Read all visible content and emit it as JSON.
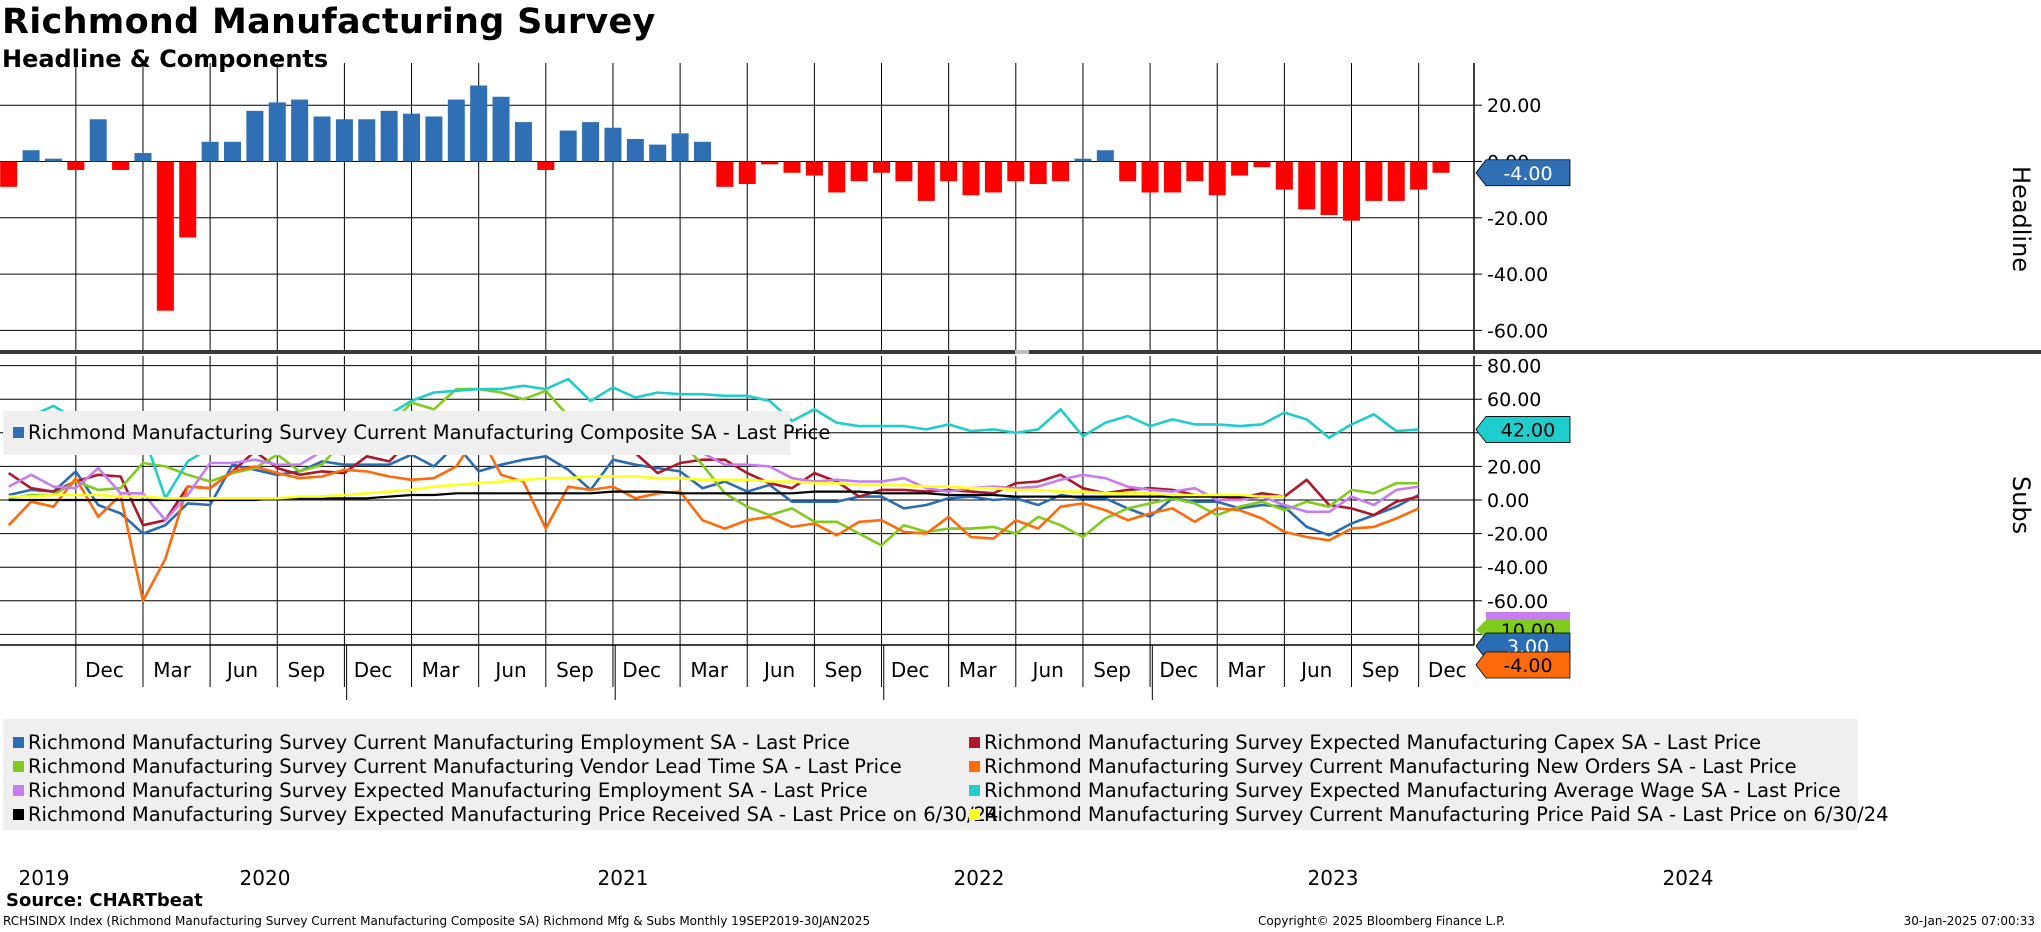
{
  "title": "Richmond Manufacturing Survey",
  "subtitle": "Headline & Components",
  "source": "Source: CHARTbeat",
  "footer": {
    "left": "RCHSINDX Index (Richmond Manufacturing Survey Current Manufacturing Composite SA) Richmond Mfg & Subs  Monthly 19SEP2019-30JAN2025",
    "center": "Copyright© 2025 Bloomberg Finance L.P.",
    "right": "30-Jan-2025 07:00:33"
  },
  "colors": {
    "positive_bar": "#2f6fb3",
    "negative_bar": "#ff0000",
    "employment": "#2a6db5",
    "capex": "#b0182a",
    "vendor": "#7fcc1c",
    "new_orders": "#ff6a0a",
    "exp_employment": "#c77cf0",
    "avg_wage": "#1fcdcd",
    "price_received": "#000000",
    "price_paid": "#ffff1a"
  },
  "x_axis": {
    "month_ticks": [
      "Dec",
      "Mar",
      "Jun",
      "Sep",
      "Dec",
      "Mar",
      "Jun",
      "Sep",
      "Dec",
      "Mar",
      "Jun",
      "Sep",
      "Dec",
      "Mar",
      "Jun",
      "Sep",
      "Dec",
      "Mar",
      "Jun",
      "Sep",
      "Dec"
    ],
    "year_ticks": [
      "2019",
      "2020",
      "2021",
      "2022",
      "2023",
      "2024"
    ]
  },
  "chart_data": [
    {
      "type": "bar",
      "panel": "Headline",
      "ylabel": "Headline",
      "ylim": [
        -64,
        34
      ],
      "yticks": [
        "20.00",
        "0.00",
        "-20.00",
        "-40.00",
        "-60.00"
      ],
      "last_value_tag": "-4.00",
      "legend": [
        "Richmond Manufacturing Survey Current Manufacturing Composite SA - Last Price"
      ],
      "x": [
        "Sep 2019",
        "Oct 2019",
        "Nov 2019",
        "Dec 2019",
        "Jan 2020",
        "Feb 2020",
        "Mar 2020",
        "Apr 2020",
        "May 2020",
        "Jun 2020",
        "Jul 2020",
        "Aug 2020",
        "Sep 2020",
        "Oct 2020",
        "Nov 2020",
        "Dec 2020",
        "Jan 2021",
        "Feb 2021",
        "Mar 2021",
        "Apr 2021",
        "May 2021",
        "Jun 2021",
        "Jul 2021",
        "Aug 2021",
        "Sep 2021",
        "Oct 2021",
        "Nov 2021",
        "Dec 2021",
        "Jan 2022",
        "Feb 2022",
        "Mar 2022",
        "Apr 2022",
        "May 2022",
        "Jun 2022",
        "Jul 2022",
        "Aug 2022",
        "Sep 2022",
        "Oct 2022",
        "Nov 2022",
        "Dec 2022",
        "Jan 2023",
        "Feb 2023",
        "Mar 2023",
        "Apr 2023",
        "May 2023",
        "Jun 2023",
        "Jul 2023",
        "Aug 2023",
        "Sep 2023",
        "Oct 2023",
        "Nov 2023",
        "Dec 2023",
        "Jan 2024",
        "Feb 2024",
        "Mar 2024",
        "Apr 2024",
        "May 2024",
        "Jun 2024",
        "Jul 2024",
        "Aug 2024",
        "Sep 2024",
        "Oct 2024",
        "Nov 2024",
        "Dec 2024",
        "Jan 2025"
      ],
      "values": [
        -9,
        4,
        1,
        -3,
        15,
        -3,
        3,
        -53,
        -27,
        7,
        7,
        18,
        21,
        22,
        16,
        15,
        15,
        18,
        17,
        16,
        22,
        27,
        23,
        14,
        -3,
        11,
        14,
        12,
        8,
        6,
        10,
        7,
        -9,
        -8,
        -1,
        -4,
        -5,
        -11,
        -7,
        -4,
        -7,
        -14,
        -7,
        -12,
        -11,
        -7,
        -8,
        -7,
        1,
        4,
        -7,
        -11,
        -11,
        -7,
        -12,
        -5,
        -2,
        -10,
        -17,
        -19,
        -21,
        -14,
        -14,
        -10,
        -4
      ]
    },
    {
      "type": "line",
      "panel": "Subs",
      "ylabel": "Subs",
      "ylim": [
        -84,
        84
      ],
      "yticks": [
        "80.00",
        "60.00",
        "40.00",
        "20.00",
        "0.00",
        "-20.00",
        "-40.00",
        "-60.00",
        "-80.00"
      ],
      "last_value_tags": [
        "42.00",
        "10.00",
        "3.00",
        "-4.00"
      ],
      "series": [
        {
          "name": "Richmond Manufacturing Survey Current Manufacturing Employment SA - Last Price",
          "key": "employment",
          "values": [
            3,
            6,
            5,
            17,
            -3,
            -8,
            -20,
            -15,
            -2,
            -3,
            21,
            18,
            15,
            17,
            23,
            21,
            21,
            21,
            27,
            20,
            33,
            17,
            21,
            24,
            26,
            18,
            6,
            24,
            21,
            19,
            17,
            7,
            11,
            5,
            9,
            -1,
            -1,
            -1,
            2,
            2,
            -5,
            -3,
            1,
            2,
            0,
            1,
            -3,
            3,
            1,
            1,
            -5,
            -10,
            1,
            -1,
            -1,
            -5,
            -3,
            -4,
            -16,
            -21,
            -14,
            -9,
            -4,
            3
          ]
        },
        {
          "name": "Richmond Manufacturing Survey Expected Manufacturing Capex SA - Last Price",
          "key": "capex",
          "values": [
            16,
            7,
            5,
            11,
            15,
            14,
            -15,
            -12,
            8,
            7,
            17,
            29,
            19,
            15,
            17,
            16,
            26,
            23,
            36,
            42,
            35,
            40,
            33,
            40,
            34,
            30,
            41,
            39,
            28,
            16,
            22,
            24,
            24,
            16,
            10,
            7,
            16,
            11,
            2,
            6,
            6,
            5,
            6,
            5,
            4,
            10,
            11,
            15,
            7,
            4,
            6,
            7,
            6,
            3,
            2,
            1,
            4,
            2,
            12,
            -3,
            -5,
            -9,
            -1,
            2
          ]
        },
        {
          "name": "Richmond Manufacturing Survey Current Manufacturing Vendor Lead Time SA - Last Price",
          "key": "vendor",
          "values": [
            1,
            3,
            3,
            11,
            6,
            7,
            22,
            20,
            15,
            11,
            16,
            19,
            27,
            17,
            21,
            36,
            37,
            44,
            58,
            54,
            66,
            66,
            64,
            60,
            65,
            50,
            35,
            46,
            44,
            44,
            35,
            21,
            4,
            -4,
            -9,
            -5,
            -13,
            -13,
            -20,
            -27,
            -15,
            -19,
            -17,
            -17,
            -16,
            -20,
            -10,
            -15,
            -22,
            -11,
            -5,
            -2,
            1,
            -2,
            -9,
            -4,
            -1,
            -6,
            -1,
            -4,
            6,
            4,
            10,
            10
          ]
        },
        {
          "name": "Richmond Manufacturing Survey Current Manufacturing New Orders SA - Last Price",
          "key": "new_orders",
          "values": [
            -15,
            -1,
            -4,
            13,
            -10,
            3,
            -60,
            -35,
            8,
            7,
            17,
            20,
            16,
            13,
            14,
            18,
            17,
            14,
            12,
            13,
            20,
            40,
            15,
            11,
            -17,
            8,
            6,
            8,
            1,
            4,
            5,
            -12,
            -17,
            -12,
            -10,
            -16,
            -14,
            -21,
            -13,
            -12,
            -19,
            -20,
            -10,
            -22,
            -23,
            -12,
            -17,
            -4,
            -2,
            -6,
            -12,
            -8,
            -5,
            -13,
            -5,
            -6,
            -11,
            -19,
            -22,
            -24,
            -17,
            -16,
            -11,
            -5
          ]
        },
        {
          "name": "Richmond Manufacturing Survey Expected Manufacturing Employment SA - Last Price",
          "key": "exp_employment",
          "values": [
            8,
            15,
            8,
            7,
            19,
            4,
            4,
            -12,
            3,
            22,
            22,
            24,
            21,
            21,
            29,
            27,
            34,
            35,
            35,
            38,
            46,
            48,
            50,
            41,
            49,
            46,
            43,
            46,
            44,
            36,
            39,
            28,
            21,
            21,
            20,
            13,
            11,
            12,
            11,
            11,
            13,
            7,
            5,
            7,
            8,
            7,
            8,
            12,
            15,
            13,
            8,
            6,
            5,
            7,
            0,
            0,
            2,
            -3,
            -7,
            -7,
            2,
            -3,
            6,
            8
          ]
        },
        {
          "name": "Richmond Manufacturing Survey Expected Manufacturing Average Wage SA - Last Price",
          "key": "avg_wage",
          "values": [
            51,
            50,
            56,
            48,
            47,
            34,
            40,
            1,
            23,
            31,
            40,
            34,
            44,
            37,
            34,
            45,
            50,
            51,
            59,
            64,
            65,
            66,
            66,
            68,
            66,
            72,
            59,
            67,
            61,
            64,
            63,
            63,
            62,
            62,
            59,
            47,
            54,
            46,
            44,
            44,
            44,
            42,
            45,
            41,
            42,
            40,
            42,
            54,
            38,
            46,
            50,
            44,
            48,
            45,
            45,
            44,
            45,
            52,
            48,
            37,
            45,
            51,
            41,
            42
          ]
        },
        {
          "name": "Richmond Manufacturing Survey Expected Manufacturing Price Received SA - Last Price on 6/30/24",
          "key": "price_received",
          "values": [
            0,
            0,
            0,
            0,
            0,
            0,
            0,
            0,
            0,
            0,
            0,
            0,
            1,
            1,
            1,
            1,
            1,
            2,
            3,
            3,
            4,
            4,
            4,
            4,
            4,
            4,
            4,
            5,
            5,
            5,
            4,
            4,
            4,
            4,
            4,
            4,
            5,
            5,
            5,
            4,
            4,
            4,
            3,
            3,
            3,
            2,
            2,
            2,
            2,
            2,
            2,
            2,
            2,
            2,
            2,
            2,
            2,
            2
          ]
        },
        {
          "name": "Richmond Manufacturing Survey Current Manufacturing Price Paid SA - Last Price on 6/30/24",
          "key": "price_paid",
          "values": [
            2,
            2,
            3,
            3,
            3,
            2,
            2,
            1,
            1,
            1,
            1,
            1,
            1,
            2,
            2,
            3,
            4,
            5,
            6,
            8,
            9,
            10,
            11,
            12,
            13,
            13,
            14,
            14,
            14,
            13,
            13,
            12,
            12,
            12,
            11,
            11,
            10,
            10,
            9,
            9,
            9,
            8,
            8,
            7,
            7,
            6,
            6,
            5,
            5,
            4,
            4,
            4,
            3,
            3,
            3,
            3,
            2,
            2
          ]
        }
      ]
    }
  ]
}
